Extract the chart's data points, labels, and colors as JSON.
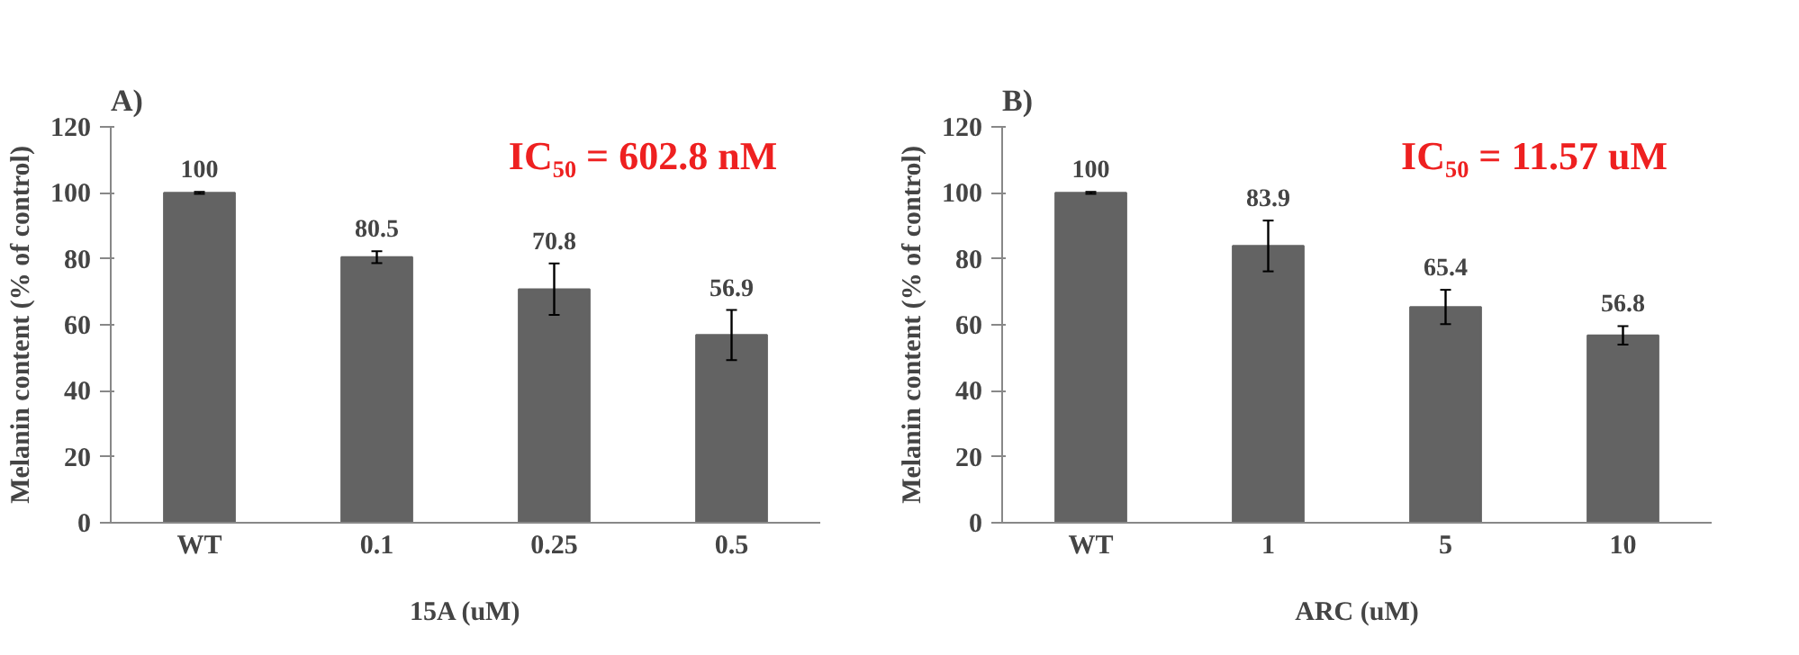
{
  "chart_data": [
    {
      "type": "bar",
      "title": "A)",
      "categories": [
        "WT",
        "0.1",
        "0.25",
        "0.5"
      ],
      "values": [
        100,
        80.5,
        70.8,
        56.9
      ],
      "errors": [
        0.3,
        1.8,
        7.8,
        7.6
      ],
      "color": "#636363",
      "ylabel": "Melanin content (% of control)",
      "xlabel": "15A (uM)",
      "ylim": [
        0,
        120
      ],
      "yticks": [
        0,
        20,
        40,
        60,
        80,
        100,
        120
      ],
      "data_labels": true,
      "grid": false,
      "annotations": [
        "IC₅₀ = 602.8 nM"
      ]
    },
    {
      "type": "bar",
      "title": "B)",
      "categories": [
        "WT",
        "1",
        "5",
        "10"
      ],
      "values": [
        100,
        83.9,
        65.4,
        56.8
      ],
      "errors": [
        0.3,
        7.7,
        5.2,
        2.8
      ],
      "color": "#636363",
      "ylabel": "Melanin content (% of control)",
      "xlabel": "ARC (uM)",
      "ylim": [
        0,
        120
      ],
      "yticks": [
        0,
        20,
        40,
        60,
        80,
        100,
        120
      ],
      "data_labels": true,
      "grid": false,
      "annotations": [
        "IC₅₀ = 11.57 uM"
      ]
    }
  ]
}
